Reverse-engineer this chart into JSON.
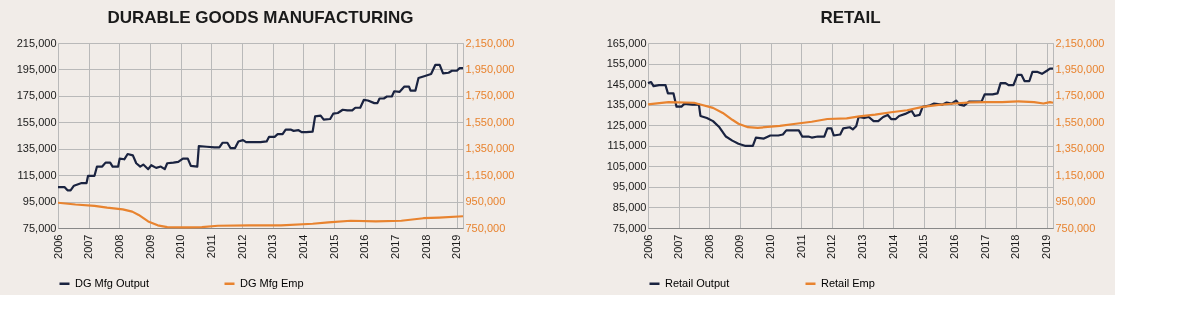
{
  "chart_data": [
    {
      "type": "line",
      "title": "DURABLE GOODS MANUFACTURING",
      "xlim": [
        2006,
        2019.2
      ],
      "xticks": [
        2006,
        2007,
        2008,
        2009,
        2010,
        2011,
        2012,
        2013,
        2014,
        2015,
        2016,
        2017,
        2018,
        2019
      ],
      "ylim": [
        75000,
        215000
      ],
      "yticks": [
        {
          "value": 75000,
          "label": "75,000"
        },
        {
          "value": 95000,
          "label": "95,000"
        },
        {
          "value": 115000,
          "label": "115,000"
        },
        {
          "value": 135000,
          "label": "135,000"
        },
        {
          "value": 155000,
          "label": "155,000"
        },
        {
          "value": 175000,
          "label": "175,000"
        },
        {
          "value": 195000,
          "label": "195,000"
        },
        {
          "value": 215000,
          "label": "215,000"
        }
      ],
      "y2lim": [
        750000,
        2150000
      ],
      "y2ticks": [
        {
          "value": 750000,
          "label": "750,000"
        },
        {
          "value": 950000,
          "label": "950,000"
        },
        {
          "value": 1150000,
          "label": "1,150,000"
        },
        {
          "value": 1350000,
          "label": "1,350,000"
        },
        {
          "value": 1550000,
          "label": "1,550,000"
        },
        {
          "value": 1750000,
          "label": "1,750,000"
        },
        {
          "value": 1950000,
          "label": "1,950,000"
        },
        {
          "value": 2150000,
          "label": "2,150,000"
        }
      ],
      "grid": true,
      "legend": "bottom",
      "series": [
        {
          "name": "DG Mfg Output",
          "color": "#1a2340",
          "x": [
            2006.0,
            2006.21,
            2006.31,
            2006.41,
            2006.52,
            2006.77,
            2006.93,
            2006.98,
            2007.19,
            2007.27,
            2007.44,
            2007.55,
            2007.7,
            2007.78,
            2007.96,
            2008.01,
            2008.16,
            2008.27,
            2008.44,
            2008.55,
            2008.68,
            2008.78,
            2008.94,
            2009.04,
            2009.2,
            2009.35,
            2009.48,
            2009.56,
            2009.76,
            2009.92,
            2010.07,
            2010.23,
            2010.33,
            2010.54,
            2010.59,
            2010.85,
            2011.1,
            2011.26,
            2011.36,
            2011.52,
            2011.62,
            2011.77,
            2011.88,
            2012.03,
            2012.13,
            2012.34,
            2012.6,
            2012.8,
            2012.88,
            2013.06,
            2013.16,
            2013.32,
            2013.42,
            2013.58,
            2013.68,
            2013.84,
            2013.94,
            2014.09,
            2014.3,
            2014.38,
            2014.56,
            2014.66,
            2014.87,
            2014.97,
            2015.12,
            2015.28,
            2015.43,
            2015.59,
            2015.69,
            2015.85,
            2015.97,
            2016.1,
            2016.31,
            2016.41,
            2016.48,
            2016.62,
            2016.72,
            2016.88,
            2016.96,
            2017.13,
            2017.29,
            2017.44,
            2017.49,
            2017.65,
            2017.75,
            2017.96,
            2018.16,
            2018.3,
            2018.44,
            2018.55,
            2018.73,
            2018.84,
            2019.0,
            2019.09,
            2019.2
          ],
          "values": [
            106000,
            106000,
            103500,
            103500,
            107000,
            109000,
            109000,
            114500,
            114500,
            121500,
            121500,
            124500,
            124500,
            121500,
            121500,
            127500,
            127000,
            131000,
            130000,
            124000,
            121500,
            123000,
            119500,
            122500,
            120500,
            121500,
            119500,
            124000,
            124500,
            125000,
            127500,
            127500,
            122000,
            121500,
            137000,
            136500,
            136000,
            136000,
            139500,
            139500,
            135500,
            135500,
            140500,
            141500,
            140000,
            140000,
            140000,
            140500,
            144000,
            144000,
            146000,
            146000,
            149500,
            149500,
            148500,
            149000,
            147500,
            147500,
            148000,
            159500,
            160000,
            157000,
            157500,
            161500,
            162000,
            164500,
            164000,
            164000,
            166000,
            166000,
            172000,
            171500,
            169500,
            169500,
            173000,
            173000,
            174500,
            174500,
            178500,
            178000,
            182000,
            182000,
            179000,
            179000,
            188500,
            190000,
            191500,
            198500,
            198500,
            192000,
            192500,
            194000,
            194000,
            196000,
            196000
          ]
        },
        {
          "name": "DG Mfg Emp",
          "color": "#e8832f",
          "axis": "y2",
          "x": [
            2006.0,
            2006.57,
            2007.19,
            2007.6,
            2008.11,
            2008.42,
            2008.63,
            2008.94,
            2009.25,
            2009.56,
            2010.18,
            2010.69,
            2011.21,
            2012.24,
            2013.27,
            2014.3,
            2014.81,
            2015.54,
            2016.36,
            2017.19,
            2017.91,
            2018.42,
            2019.2
          ],
          "values": [
            941000,
            928000,
            918000,
            904000,
            891000,
            874000,
            849000,
            800000,
            770000,
            757000,
            755000,
            757000,
            767000,
            770000,
            770000,
            782000,
            792000,
            805000,
            800000,
            805000,
            824000,
            829000,
            839000
          ]
        }
      ]
    },
    {
      "type": "line",
      "title": "RETAIL",
      "xlim": [
        2006,
        2019.21
      ],
      "xticks": [
        2006,
        2007,
        2008,
        2009,
        2010,
        2011,
        2012,
        2013,
        2014,
        2015,
        2016,
        2017,
        2018,
        2019
      ],
      "ylim": [
        75000,
        165000
      ],
      "yticks": [
        {
          "value": 75000,
          "label": "75,000"
        },
        {
          "value": 85000,
          "label": "85,000"
        },
        {
          "value": 95000,
          "label": "95,000"
        },
        {
          "value": 105000,
          "label": "105,000"
        },
        {
          "value": 115000,
          "label": "115,000"
        },
        {
          "value": 125000,
          "label": "125,000"
        },
        {
          "value": 135000,
          "label": "135,000"
        },
        {
          "value": 145000,
          "label": "145,000"
        },
        {
          "value": 155000,
          "label": "155,000"
        },
        {
          "value": 165000,
          "label": "165,000"
        }
      ],
      "y2lim": [
        750000,
        2150000
      ],
      "y2ticks": [
        {
          "value": 750000,
          "label": "750,000"
        },
        {
          "value": 950000,
          "label": "950,000"
        },
        {
          "value": 1150000,
          "label": "1,150,000"
        },
        {
          "value": 1350000,
          "label": "1,350,000"
        },
        {
          "value": 1550000,
          "label": "1,550,000"
        },
        {
          "value": 1750000,
          "label": "1,750,000"
        },
        {
          "value": 1950000,
          "label": "1,950,000"
        },
        {
          "value": 2150000,
          "label": "2,150,000"
        }
      ],
      "grid": true,
      "legend": "bottom",
      "series": [
        {
          "name": "Retail Output",
          "color": "#1a2340",
          "x": [
            2006.0,
            2006.1,
            2006.18,
            2006.36,
            2006.57,
            2006.65,
            2006.83,
            2006.93,
            2007.09,
            2007.19,
            2007.45,
            2007.66,
            2007.71,
            2007.92,
            2008.12,
            2008.33,
            2008.54,
            2008.75,
            2008.95,
            2009.16,
            2009.42,
            2009.52,
            2009.78,
            2009.99,
            2010.25,
            2010.4,
            2010.51,
            2010.72,
            2010.92,
            2011.03,
            2011.23,
            2011.34,
            2011.54,
            2011.75,
            2011.85,
            2011.98,
            2012.06,
            2012.27,
            2012.37,
            2012.58,
            2012.68,
            2012.79,
            2012.87,
            2013.05,
            2013.2,
            2013.36,
            2013.51,
            2013.67,
            2013.82,
            2013.93,
            2014.08,
            2014.19,
            2014.39,
            2014.6,
            2014.7,
            2014.86,
            2014.96,
            2015.17,
            2015.33,
            2015.59,
            2015.74,
            2015.9,
            2016.05,
            2016.16,
            2016.31,
            2016.47,
            2016.73,
            2016.88,
            2016.98,
            2017.24,
            2017.4,
            2017.5,
            2017.66,
            2017.76,
            2017.92,
            2018.05,
            2018.18,
            2018.28,
            2018.44,
            2018.54,
            2018.69,
            2018.85,
            2019.01,
            2019.11,
            2019.21
          ],
          "values": [
            145500,
            146000,
            144000,
            144500,
            144500,
            140500,
            140500,
            134000,
            134000,
            135500,
            135000,
            135000,
            129500,
            128500,
            127000,
            124000,
            119500,
            117500,
            116000,
            115000,
            115000,
            119000,
            118500,
            120000,
            120000,
            120500,
            122500,
            122500,
            122500,
            119500,
            119500,
            119000,
            119500,
            119500,
            123500,
            123500,
            120000,
            120500,
            123500,
            124000,
            123000,
            124500,
            129000,
            128500,
            129000,
            127000,
            127000,
            129000,
            130000,
            128000,
            128000,
            129500,
            130500,
            132000,
            129500,
            130000,
            134000,
            134500,
            135500,
            135000,
            136000,
            135500,
            137000,
            135000,
            134500,
            136500,
            136500,
            136500,
            140000,
            140000,
            140500,
            145500,
            145500,
            144500,
            144500,
            149500,
            149500,
            146500,
            146500,
            151000,
            151000,
            150000,
            151500,
            152500,
            152500
          ]
        },
        {
          "name": "Retail Emp",
          "color": "#e8832f",
          "axis": "y2",
          "x": [
            2006.0,
            2006.67,
            2007.5,
            2007.71,
            2008.12,
            2008.44,
            2008.75,
            2008.95,
            2009.26,
            2009.58,
            2010.3,
            2010.82,
            2011.34,
            2011.85,
            2012.48,
            2012.89,
            2013.41,
            2013.93,
            2014.45,
            2014.96,
            2015.48,
            2016.0,
            2016.52,
            2017.04,
            2017.55,
            2018.07,
            2018.59,
            2018.9,
            2019.11,
            2019.21
          ],
          "values": [
            1685000,
            1703000,
            1698000,
            1685000,
            1659000,
            1621000,
            1569000,
            1539000,
            1513000,
            1508000,
            1523000,
            1539000,
            1554000,
            1575000,
            1580000,
            1595000,
            1608000,
            1626000,
            1641000,
            1667000,
            1682000,
            1692000,
            1700000,
            1703000,
            1703000,
            1708000,
            1703000,
            1692000,
            1703000,
            1698000
          ]
        }
      ]
    }
  ]
}
